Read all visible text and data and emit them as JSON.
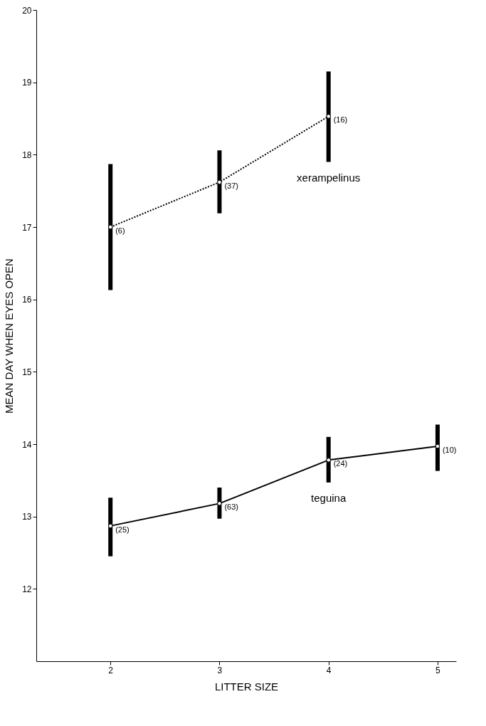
{
  "chart_data": {
    "type": "line",
    "xlabel": "LITTER SIZE",
    "ylabel": "MEAN DAY WHEN EYES OPEN",
    "xlim": [
      1.32,
      5.17
    ],
    "xticks": [
      2,
      3,
      4,
      5
    ],
    "ylim": [
      11,
      20
    ],
    "yticks": [
      12,
      13,
      14,
      15,
      16,
      17,
      18,
      19,
      20
    ],
    "grid": false,
    "marker": "circle",
    "series": [
      {
        "name": "xerampelinus",
        "color": "#000000",
        "line_style": "dotted",
        "x": [
          2,
          3,
          4
        ],
        "values": [
          17.0,
          17.62,
          18.53
        ],
        "errors": [
          [
            16.13,
            17.87
          ],
          [
            17.19,
            18.06
          ],
          [
            17.9,
            19.15
          ]
        ]
      },
      {
        "name": "teguina",
        "color": "#000000",
        "line_style": "solid",
        "x": [
          2,
          3,
          4,
          5
        ],
        "values": [
          12.87,
          13.18,
          13.78,
          13.97
        ],
        "errors": [
          [
            12.45,
            13.26
          ],
          [
            12.97,
            13.4
          ],
          [
            13.47,
            14.1
          ],
          [
            13.63,
            14.27
          ]
        ]
      }
    ],
    "annotations": [
      {
        "text": "(6)",
        "x": 2,
        "y": 17.0
      },
      {
        "text": "(37)",
        "x": 3,
        "y": 17.62
      },
      {
        "text": "(16)",
        "x": 4,
        "y": 18.53
      },
      {
        "text": "(25)",
        "x": 2,
        "y": 12.87
      },
      {
        "text": "(63)",
        "x": 3,
        "y": 13.18
      },
      {
        "text": "(24)",
        "x": 4,
        "y": 13.78
      },
      {
        "text": "(10)",
        "x": 5,
        "y": 13.97
      }
    ]
  }
}
